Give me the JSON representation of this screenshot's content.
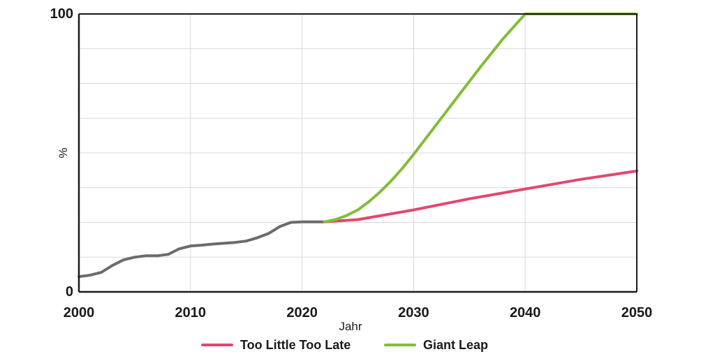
{
  "chart_data": {
    "type": "line",
    "xlabel": "Jahr",
    "ylabel": "%",
    "xlim": [
      2000,
      2050
    ],
    "ylim": [
      0,
      100
    ],
    "x_ticks": [
      "2000",
      "2010",
      "2020",
      "2030",
      "2040",
      "2050"
    ],
    "y_ticks": [
      "0",
      "100"
    ],
    "grid": true,
    "legend_position": "bottom",
    "colors": {
      "historical": "#6b6b6b",
      "too_little": "#e3476e",
      "giant_leap": "#82bd37",
      "grid": "#d9d9d9",
      "axis": "#1a1a1a"
    },
    "series": [
      {
        "key": "historical",
        "color": "#6b6b6b",
        "x": [
          2000,
          2001,
          2002,
          2003,
          2004,
          2005,
          2006,
          2007,
          2008,
          2009,
          2010,
          2011,
          2012,
          2013,
          2014,
          2015,
          2016,
          2017,
          2018,
          2019,
          2020,
          2021,
          2022
        ],
        "y": [
          5.5,
          6.0,
          7.0,
          9.5,
          11.5,
          12.5,
          13.0,
          13.0,
          13.5,
          15.5,
          16.5,
          16.8,
          17.2,
          17.5,
          17.8,
          18.3,
          19.5,
          21.0,
          23.5,
          25.0,
          25.2,
          25.2,
          25.2
        ]
      },
      {
        "key": "too_little",
        "name": "Too Little Too Late",
        "color": "#e3476e",
        "x": [
          2022,
          2025,
          2030,
          2035,
          2040,
          2045,
          2050
        ],
        "y": [
          25.2,
          26.0,
          29.5,
          33.5,
          37.0,
          40.5,
          43.5
        ]
      },
      {
        "key": "giant_leap",
        "name": "Giant Leap",
        "color": "#82bd37",
        "x": [
          2022,
          2023,
          2024,
          2025,
          2026,
          2027,
          2028,
          2029,
          2030,
          2032,
          2034,
          2036,
          2038,
          2040,
          2041,
          2045,
          2050
        ],
        "y": [
          25.2,
          26.0,
          27.5,
          29.5,
          32.5,
          36.0,
          40.0,
          44.5,
          49.5,
          60.0,
          70.5,
          81.0,
          91.0,
          100,
          100,
          100,
          100
        ]
      }
    ]
  }
}
